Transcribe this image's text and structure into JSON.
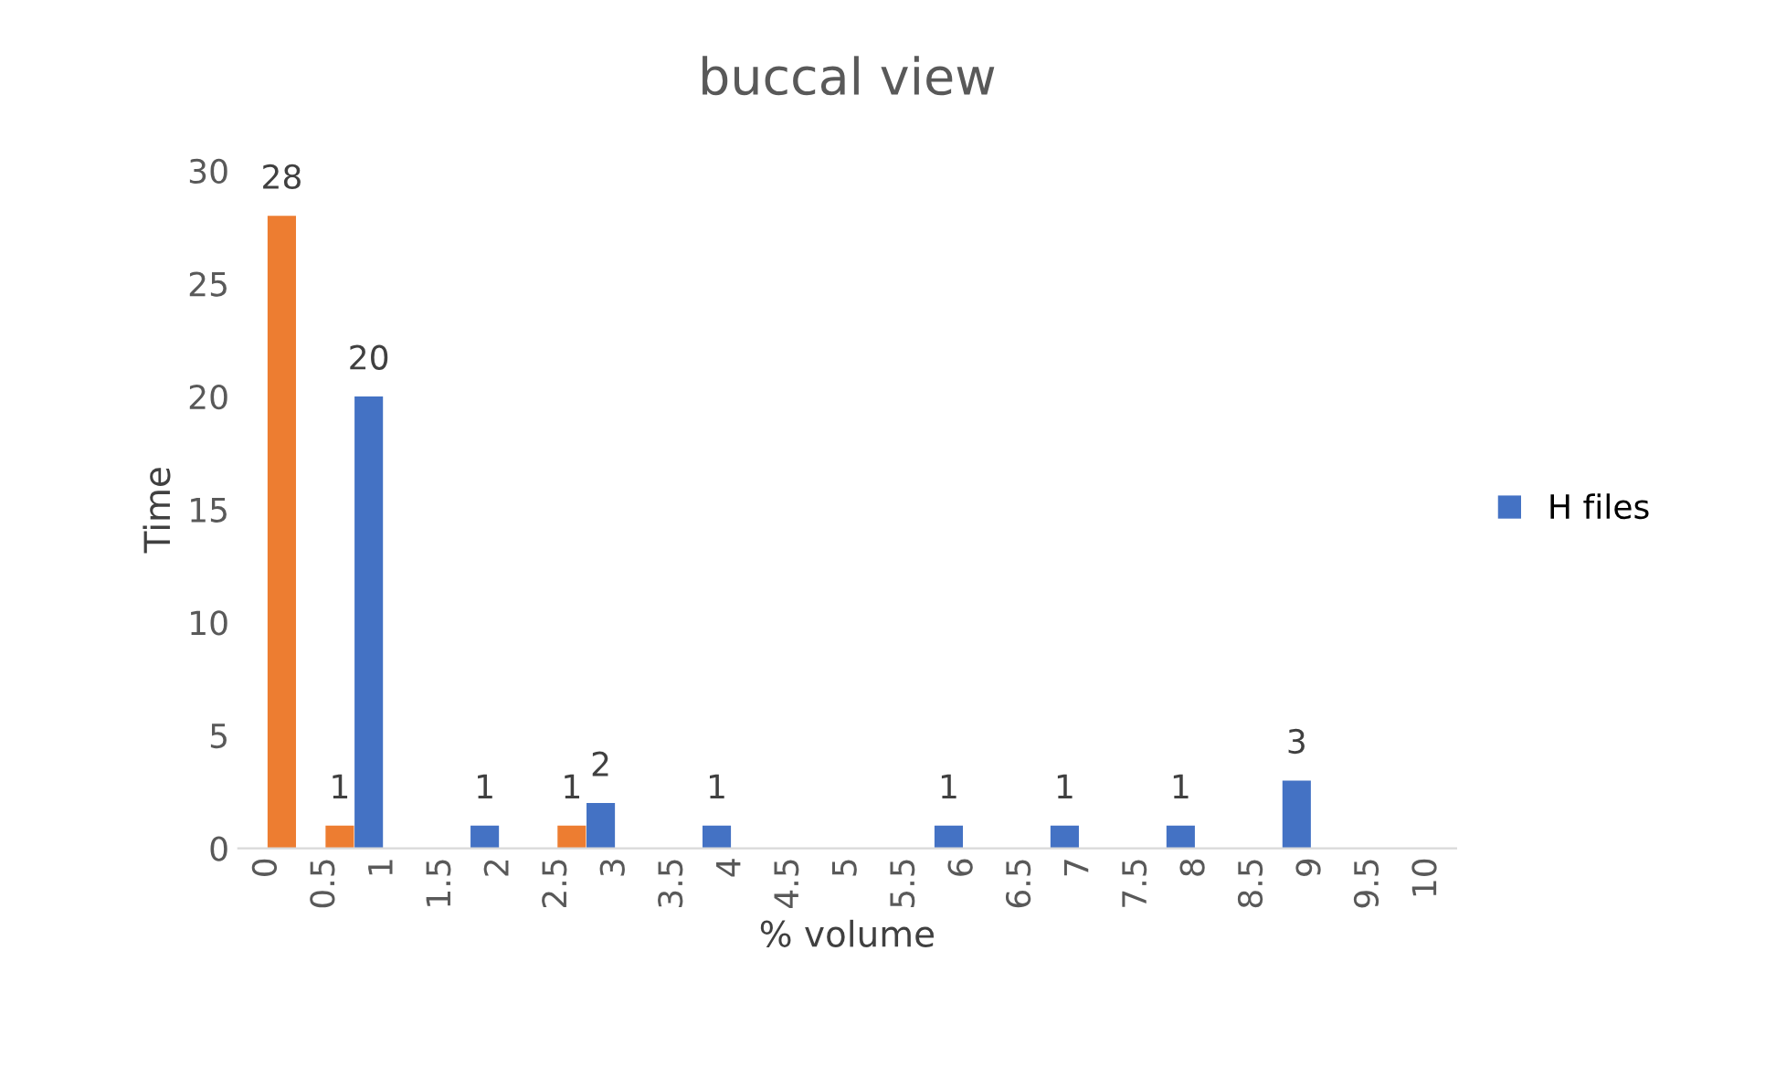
{
  "chart_data": {
    "type": "bar",
    "title": "buccal view",
    "xlabel": "% volume",
    "ylabel": "Time",
    "categories": [
      "0",
      "0.5",
      "1",
      "1.5",
      "2",
      "2.5",
      "3",
      "3.5",
      "4",
      "4.5",
      "5",
      "5.5",
      "6",
      "6.5",
      "7",
      "7.5",
      "8",
      "8.5",
      "9",
      "9.5",
      "10"
    ],
    "series": [
      {
        "name": "H files",
        "color": "#4472c4",
        "values": [
          null,
          null,
          20,
          null,
          1,
          null,
          2,
          null,
          1,
          null,
          null,
          null,
          1,
          null,
          1,
          null,
          1,
          null,
          3,
          null,
          null
        ]
      },
      {
        "color": "#ed7d31",
        "values": [
          28,
          1,
          null,
          null,
          null,
          1,
          null,
          null,
          null,
          null,
          null,
          null,
          null,
          null,
          null,
          null,
          null,
          null,
          null,
          null,
          null
        ]
      }
    ],
    "ylim": [
      0,
      30
    ],
    "yticks": [
      0,
      5,
      10,
      15,
      20,
      25,
      30
    ],
    "grid": false,
    "legend": "right",
    "data_labels": true
  }
}
